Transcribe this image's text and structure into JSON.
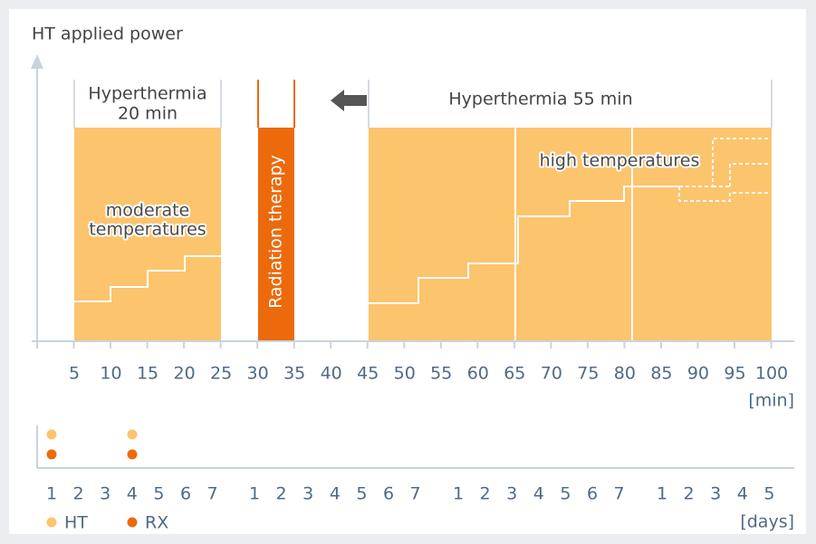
{
  "title": "HT applied power",
  "session1": {
    "title_lines": [
      "Hyperthermia",
      "20 min"
    ],
    "zone_lines": [
      "moderate",
      "temperatures"
    ]
  },
  "radiation": "Radiation therapy",
  "session2": {
    "title": "Hyperthermia 55 min",
    "zone": "high temperatures"
  },
  "time_axis": {
    "labels": [
      "5",
      "10",
      "15",
      "20",
      "25",
      "30",
      "35",
      "40",
      "45",
      "50",
      "55",
      "60",
      "65",
      "70",
      "75",
      "80",
      "85",
      "90",
      "95",
      "100"
    ],
    "unit": "[min]"
  },
  "days_axis": {
    "weeks": [
      [
        "1",
        "2",
        "3",
        "4",
        "5",
        "6",
        "7"
      ],
      [
        "1",
        "2",
        "3",
        "4",
        "5",
        "6",
        "7"
      ],
      [
        "1",
        "2",
        "3",
        "4",
        "5",
        "6",
        "7"
      ],
      [
        "1",
        "2",
        "3",
        "4",
        "5"
      ]
    ],
    "unit": "[days]"
  },
  "legend": [
    {
      "label": "HT",
      "color": "#fcc46d"
    },
    {
      "label": "RX",
      "color": "#ec6a0c"
    }
  ]
}
